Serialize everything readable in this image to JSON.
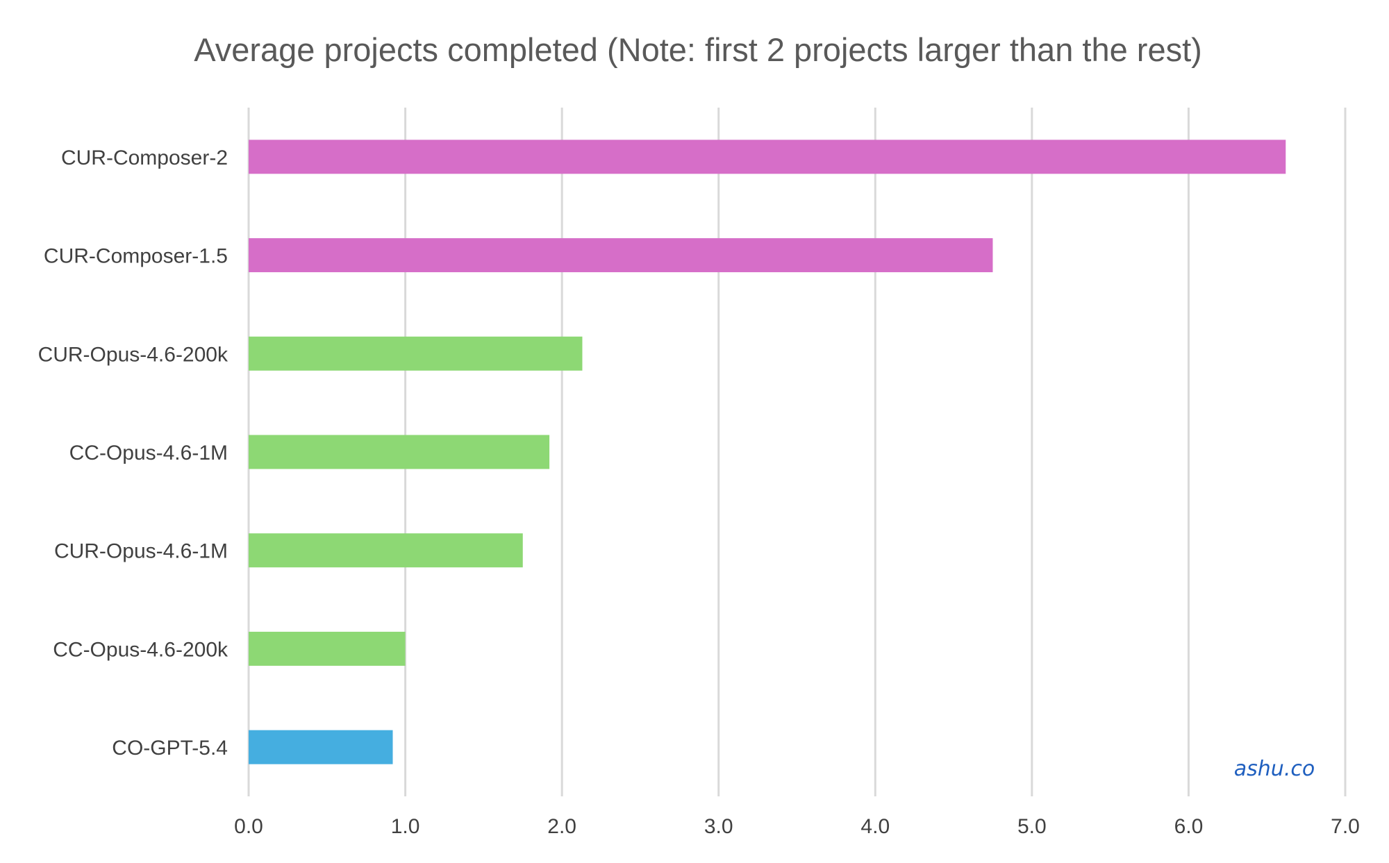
{
  "chart_data": {
    "type": "bar",
    "orientation": "horizontal",
    "title": "Average projects completed (Note: first 2 projects larger than the rest)",
    "xlabel": "",
    "ylabel": "",
    "xlim": [
      0,
      7
    ],
    "x_ticks": [
      "0.0",
      "1.0",
      "2.0",
      "3.0",
      "4.0",
      "5.0",
      "6.0",
      "7.0"
    ],
    "grid": true,
    "legend": "none",
    "categories": [
      "CUR-Composer-2",
      "CUR-Composer-1.5",
      "CUR-Opus-4.6-200k",
      "CC-Opus-4.6-1M",
      "CUR-Opus-4.6-1M",
      "CC-Opus-4.6-200k",
      "CO-GPT-5.4"
    ],
    "values": [
      6.62,
      4.75,
      2.13,
      1.92,
      1.75,
      1.0,
      0.92
    ],
    "bar_colors": [
      "#d66ec8",
      "#d66ec8",
      "#8dd874",
      "#8dd874",
      "#8dd874",
      "#8dd874",
      "#45aee0"
    ]
  },
  "watermark": "ashu.co"
}
